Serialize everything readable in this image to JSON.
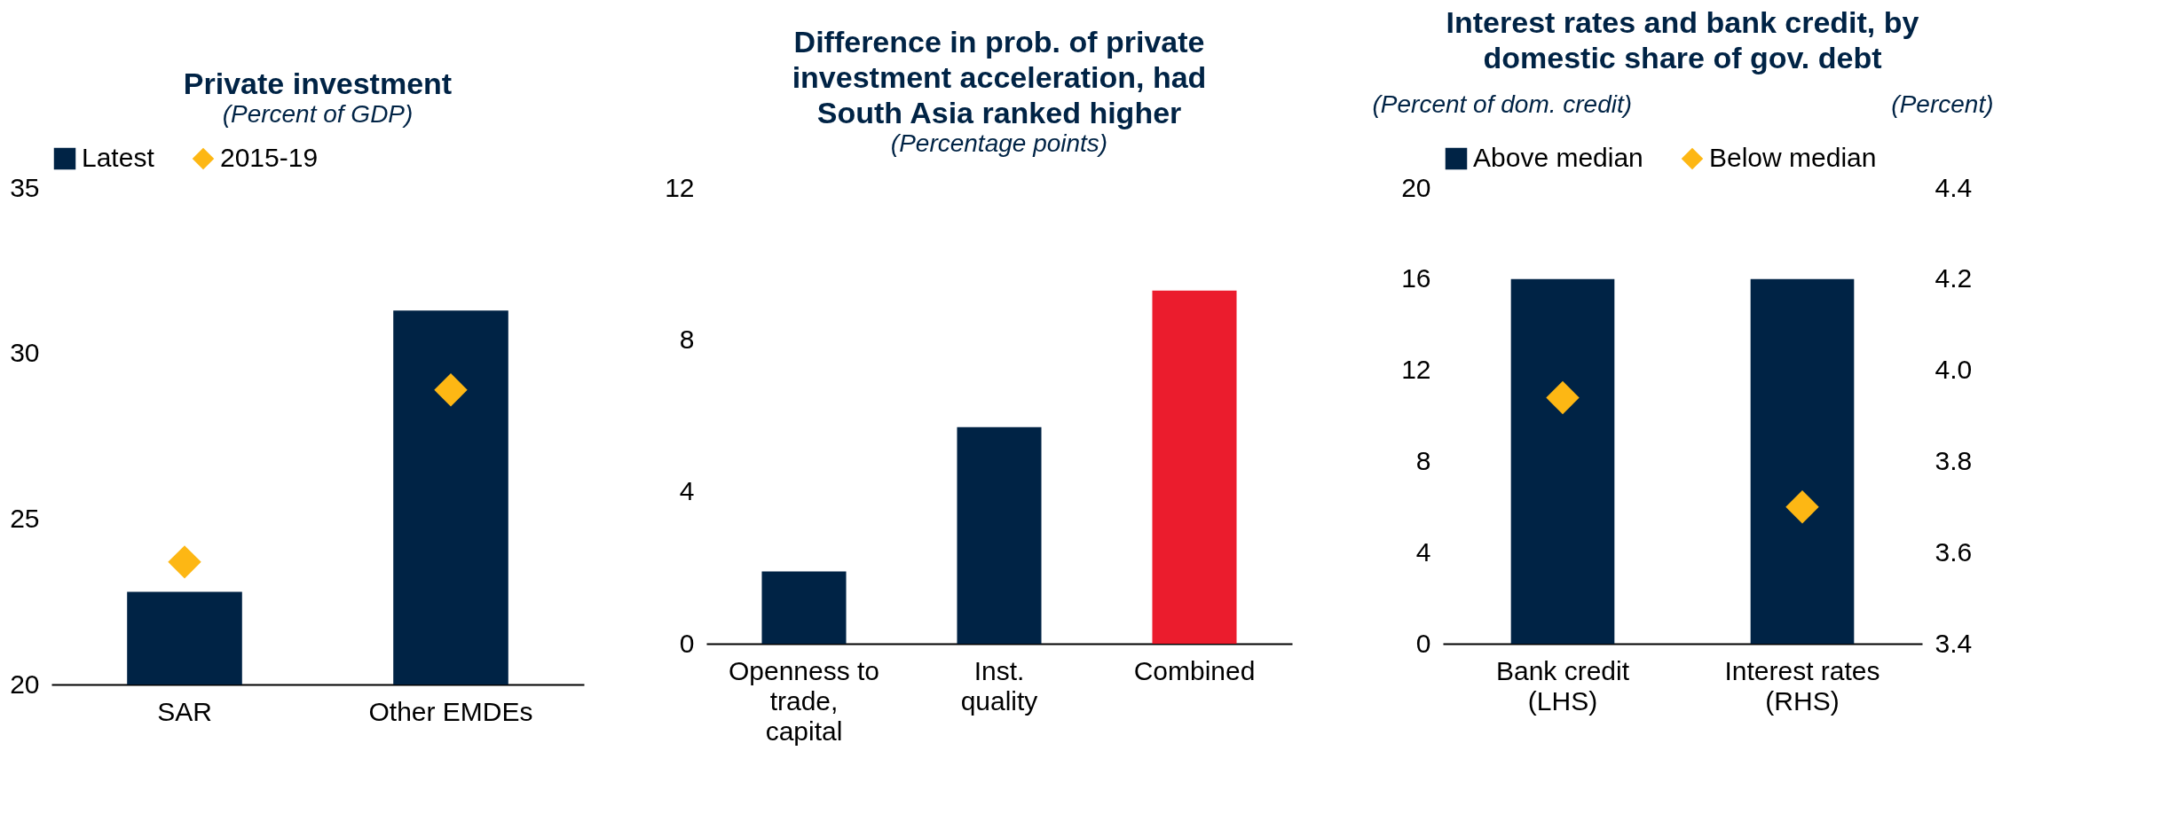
{
  "chart_data": [
    {
      "type": "bar",
      "title": "Private investment",
      "subtitle": "(Percent of GDP)",
      "categories": [
        "SAR",
        "Other EMDEs"
      ],
      "series": [
        {
          "name": "Latest",
          "color": "#002345",
          "values": [
            22.8,
            31.3
          ]
        },
        {
          "name": "2015-19",
          "type": "scatter",
          "color": "#fdb714",
          "values": [
            23.7,
            28.9
          ]
        }
      ],
      "ylim": [
        20,
        35
      ],
      "yticks": [
        20,
        25,
        30,
        35
      ],
      "legend": "top",
      "marker": "diamond"
    },
    {
      "type": "bar",
      "title": "Difference in prob. of private investment acceleration, had South Asia ranked higher",
      "subtitle": "(Percentage points)",
      "categories": [
        "Openness to trade, capital",
        "Inst. quality",
        "Combined"
      ],
      "values": [
        1.9,
        5.7,
        9.3
      ],
      "colors": [
        "#002345",
        "#002345",
        "#eb1c2d"
      ],
      "ylim": [
        0,
        12
      ],
      "yticks": [
        0,
        4,
        8,
        12
      ]
    },
    {
      "type": "bar",
      "title": "Interest rates and bank credit, by domestic share of gov. debt",
      "ylabel": "(Percent of dom. credit)",
      "y2label": "(Percent)",
      "categories": [
        "Bank credit (LHS)",
        "Interest rates (RHS)"
      ],
      "series": [
        {
          "name": "Above median",
          "color": "#002345",
          "values": [
            16,
            null
          ]
        },
        {
          "color": "#002345",
          "values": [
            null,
            4.2
          ],
          "axis": "y2"
        },
        {
          "name": "Below median",
          "type": "scatter",
          "color": "#fdb714",
          "values": [
            10.8,
            null
          ]
        },
        {
          "type": "scatter",
          "color": "#fdb714",
          "values": [
            null,
            3.7
          ],
          "axis": "y2"
        }
      ],
      "ylim": [
        0,
        20
      ],
      "yticks": [
        0,
        4,
        8,
        12,
        16,
        20
      ],
      "y2lim": [
        3.4,
        4.4
      ],
      "y2ticks": [
        {
          "value": 3.4,
          "label": "3.4"
        },
        {
          "value": 3.6,
          "label": "3.6"
        },
        {
          "value": 3.8,
          "label": "3.8"
        },
        {
          "value": 4,
          "label": "4.0"
        },
        {
          "value": 4.2,
          "label": "4.2"
        },
        {
          "value": 4.4,
          "label": "4.4"
        }
      ],
      "legend": "top",
      "marker": "diamond"
    }
  ]
}
